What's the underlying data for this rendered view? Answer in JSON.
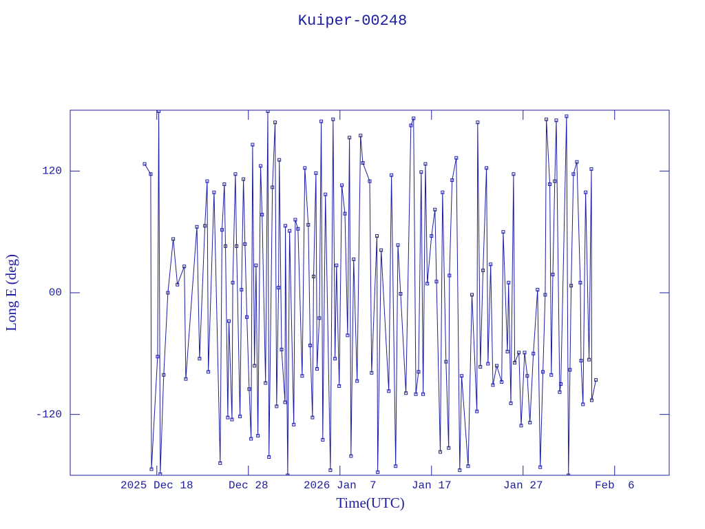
{
  "chart_data": {
    "type": "line",
    "title": "Kuiper-00248",
    "xlabel": "Time(UTC)",
    "ylabel": "Long E (deg)",
    "color": "#1c1ca0",
    "marker": "square",
    "xlim": [
      "2025-12-08T13:00",
      "2026-02-11T23:00"
    ],
    "xticks": [
      {
        "value": "2025-12-18T00:00",
        "label": "2025 Dec 18"
      },
      {
        "value": "2025-12-28T00:00",
        "label": "Dec 28"
      },
      {
        "value": "2026-01-07T00:00",
        "label": "2026 Jan  7"
      },
      {
        "value": "2026-01-17T00:00",
        "label": "Jan 17"
      },
      {
        "value": "2026-01-27T00:00",
        "label": "Jan 27"
      },
      {
        "value": "2026-02-06T00:00",
        "label": "Feb  6"
      }
    ],
    "ylim": [
      -180,
      180
    ],
    "yticks": [
      -120,
      {
        "value": 0,
        "label": "00"
      },
      120
    ],
    "x": [
      "2025-12-16T16:00",
      "2025-12-17T08:00",
      "2025-12-17T10:00",
      "2025-12-18T02:00",
      "2025-12-18T05:00",
      "2025-12-18T09:00",
      "2025-12-18T18:00",
      "2025-12-19T05:00",
      "2025-12-19T19:00",
      "2025-12-20T06:00",
      "2025-12-21T00:00",
      "2025-12-21T04:00",
      "2025-12-22T09:00",
      "2025-12-22T16:00",
      "2025-12-23T06:00",
      "2025-12-23T12:00",
      "2025-12-23T15:00",
      "2025-12-24T06:00",
      "2025-12-24T22:00",
      "2025-12-25T03:00",
      "2025-12-25T09:00",
      "2025-12-25T12:00",
      "2025-12-25T18:00",
      "2025-12-25T21:00",
      "2025-12-26T05:00",
      "2025-12-26T07:00",
      "2025-12-26T14:00",
      "2025-12-26T17:00",
      "2025-12-27T02:00",
      "2025-12-27T06:00",
      "2025-12-27T11:00",
      "2025-12-27T15:00",
      "2025-12-27T20:00",
      "2025-12-28T02:00",
      "2025-12-28T07:00",
      "2025-12-28T11:00",
      "2025-12-28T16:00",
      "2025-12-28T20:00",
      "2025-12-29T01:00",
      "2025-12-29T08:00",
      "2025-12-29T12:00",
      "2025-12-29T21:00",
      "2025-12-30T03:00",
      "2025-12-30T06:00",
      "2025-12-30T15:00",
      "2025-12-30T22:00",
      "2025-12-31T02:00",
      "2025-12-31T07:00",
      "2025-12-31T09:00",
      "2025-12-31T15:00",
      "2026-01-01T00:00",
      "2026-01-01T01:00",
      "2026-01-01T07:00",
      "2026-01-01T12:00",
      "2026-01-01T23:00",
      "2026-01-02T03:00",
      "2026-01-02T10:00",
      "2026-01-02T21:00",
      "2026-01-03T04:00",
      "2026-01-03T13:00",
      "2026-01-03T18:00",
      "2026-01-04T00:00",
      "2026-01-04T03:00",
      "2026-01-04T09:00",
      "2026-01-04T12:00",
      "2026-01-04T18:00",
      "2026-01-04T23:00",
      "2026-01-05T03:00",
      "2026-01-05T10:00",
      "2026-01-05T23:00",
      "2026-01-06T06:00",
      "2026-01-06T11:00",
      "2026-01-06T15:00",
      "2026-01-06T22:00",
      "2026-01-07T05:00",
      "2026-01-07T13:00",
      "2026-01-07T20:00",
      "2026-01-08T01:00",
      "2026-01-08T05:00",
      "2026-01-08T12:00",
      "2026-01-08T21:00",
      "2026-01-09T06:00",
      "2026-01-09T12:00",
      "2026-01-10T06:00",
      "2026-01-10T11:00",
      "2026-01-11T01:00",
      "2026-01-11T03:00",
      "2026-01-11T12:00",
      "2026-01-12T08:00",
      "2026-01-12T15:00",
      "2026-01-13T02:00",
      "2026-01-13T08:00",
      "2026-01-13T15:00",
      "2026-01-14T05:00",
      "2026-01-14T18:00",
      "2026-01-15T01:00",
      "2026-01-15T07:00",
      "2026-01-15T14:00",
      "2026-01-15T21:00",
      "2026-01-16T02:00",
      "2026-01-16T08:00",
      "2026-01-16T13:00",
      "2026-01-17T00:00",
      "2026-01-17T09:00",
      "2026-01-17T13:00",
      "2026-01-17T23:00",
      "2026-01-18T05:00",
      "2026-01-18T14:00",
      "2026-01-18T21:00",
      "2026-01-18T23:00",
      "2026-01-19T06:00",
      "2026-01-19T17:00",
      "2026-01-20T02:00",
      "2026-01-20T07:00",
      "2026-01-21T00:00",
      "2026-01-21T10:00",
      "2026-01-21T23:00",
      "2026-01-22T01:00",
      "2026-01-22T08:00",
      "2026-01-22T15:00",
      "2026-01-23T00:00",
      "2026-01-23T04:00",
      "2026-01-23T11:00",
      "2026-01-23T17:00",
      "2026-01-24T03:00",
      "2026-01-24T16:00",
      "2026-01-24T20:00",
      "2026-01-25T07:00",
      "2026-01-25T10:00",
      "2026-01-25T16:00",
      "2026-01-25T23:00",
      "2026-01-26T02:00",
      "2026-01-26T13:00",
      "2026-01-26T19:00",
      "2026-01-27T04:00",
      "2026-01-27T11:00",
      "2026-01-27T18:00",
      "2026-01-28T03:00",
      "2026-01-28T14:00",
      "2026-01-28T21:00",
      "2026-01-29T04:00",
      "2026-01-29T10:00",
      "2026-01-29T13:00",
      "2026-01-29T22:00",
      "2026-01-30T02:00",
      "2026-01-30T06:00",
      "2026-01-30T11:00",
      "2026-01-30T15:00",
      "2026-01-31T00:00",
      "2026-01-31T03:00",
      "2026-01-31T18:00",
      "2026-01-31T23:00",
      "2026-02-01T03:00",
      "2026-02-01T06:00",
      "2026-02-01T12:00",
      "2026-02-01T21:00",
      "2026-02-02T06:00",
      "2026-02-02T08:00",
      "2026-02-02T13:00",
      "2026-02-02T20:00",
      "2026-02-03T05:00",
      "2026-02-03T11:00",
      "2026-02-03T12:00",
      "2026-02-03T23:00"
    ],
    "values": [
      127,
      117,
      -174,
      -63,
      179,
      -179,
      -81,
      0,
      53,
      8,
      26,
      -85,
      65,
      -65,
      66,
      110,
      -78,
      99,
      -168,
      62,
      107,
      46,
      -123,
      -28,
      -125,
      10,
      117,
      46,
      -122,
      3,
      112,
      48,
      -24,
      -95,
      -144,
      146,
      -72,
      27,
      -141,
      125,
      77,
      -89,
      179,
      -162,
      104,
      168,
      -112,
      5,
      131,
      -56,
      -108,
      66,
      -180,
      61,
      -130,
      72,
      63,
      -82,
      123,
      67,
      -52,
      -123,
      16,
      118,
      -75,
      -25,
      169,
      -145,
      97,
      -175,
      171,
      -65,
      27,
      -92,
      106,
      78,
      -42,
      153,
      -161,
      33,
      -87,
      155,
      128,
      110,
      -79,
      56,
      -177,
      42,
      -97,
      116,
      -171,
      47,
      -1,
      -99,
      165,
      172,
      -100,
      -78,
      119,
      -100,
      127,
      9,
      56,
      82,
      11,
      -157,
      99,
      -68,
      -153,
      17,
      111,
      133,
      -175,
      -82,
      -171,
      -2,
      -117,
      168,
      -73,
      22,
      123,
      -70,
      28,
      -91,
      -72,
      -88,
      60,
      -58,
      10,
      -109,
      117,
      -69,
      -59,
      -131,
      -59,
      -82,
      -128,
      -60,
      3,
      -172,
      -78,
      -2,
      171,
      107,
      -81,
      18,
      110,
      170,
      -98,
      -90,
      174,
      -180,
      -76,
      7,
      117,
      129,
      10,
      -67,
      -110,
      99,
      -66,
      122,
      -106,
      -86
    ]
  }
}
